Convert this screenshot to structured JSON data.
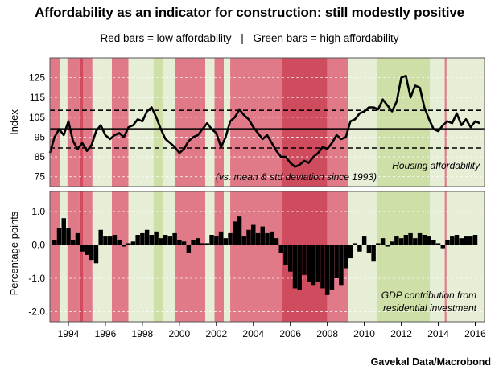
{
  "header": {
    "title": "Affordability as an indicator for construction: still modestly positive",
    "legend_red": "Red bars = low affordability",
    "legend_sep": "|",
    "legend_green": "Green bars =  high affordability"
  },
  "source": "Gavekal Data/Macrobond",
  "colors": {
    "red_band": "#e07a88",
    "dark_red_band": "#cf4b5e",
    "green_band": "#cfdfa8",
    "light_green_band": "#e7eed6",
    "line": "#000000",
    "bars": "#000000"
  },
  "chart_data": [
    {
      "type": "line",
      "ylabel": "Index",
      "ylim": [
        70,
        135
      ],
      "yticks": [
        75,
        85,
        95,
        105,
        115,
        125
      ],
      "x_range": [
        1993.0,
        2016.5
      ],
      "xticks": [
        1994,
        1996,
        1998,
        2000,
        2002,
        2004,
        2006,
        2008,
        2010,
        2012,
        2014,
        2016
      ],
      "grid": "dashed horizontal",
      "reference_lines": {
        "mean": 99,
        "upper": 108.5,
        "lower": 89.5
      },
      "annotations": [
        "Housing affordability",
        "(vs. mean & std deviation since 1993)"
      ],
      "series": [
        {
          "name": "Housing affordability",
          "x": [
            1993.0,
            1993.25,
            1993.5,
            1993.75,
            1994.0,
            1994.25,
            1994.5,
            1994.75,
            1995.0,
            1995.25,
            1995.5,
            1995.75,
            1996.0,
            1996.25,
            1996.5,
            1996.75,
            1997.0,
            1997.25,
            1997.5,
            1997.75,
            1998.0,
            1998.25,
            1998.5,
            1998.75,
            1999.0,
            1999.25,
            1999.5,
            1999.75,
            2000.0,
            2000.25,
            2000.5,
            2000.75,
            2001.0,
            2001.25,
            2001.5,
            2001.75,
            2002.0,
            2002.25,
            2002.5,
            2002.75,
            2003.0,
            2003.25,
            2003.5,
            2003.75,
            2004.0,
            2004.25,
            2004.5,
            2004.75,
            2005.0,
            2005.25,
            2005.5,
            2005.75,
            2006.0,
            2006.25,
            2006.5,
            2006.75,
            2007.0,
            2007.25,
            2007.5,
            2007.75,
            2008.0,
            2008.25,
            2008.5,
            2008.75,
            2009.0,
            2009.25,
            2009.5,
            2009.75,
            2010.0,
            2010.25,
            2010.5,
            2010.75,
            2011.0,
            2011.25,
            2011.5,
            2011.75,
            2012.0,
            2012.25,
            2012.5,
            2012.75,
            2013.0,
            2013.25,
            2013.5,
            2013.75,
            2014.0,
            2014.25,
            2014.5,
            2014.75,
            2015.0,
            2015.25,
            2015.5,
            2015.75,
            2016.0,
            2016.25
          ],
          "values": [
            87,
            95,
            99,
            96,
            103,
            93,
            89,
            92,
            88,
            91,
            98,
            101,
            96,
            94,
            96,
            97,
            95,
            100,
            101,
            104,
            103,
            108,
            110,
            105,
            99,
            94,
            92,
            90,
            87,
            89,
            93,
            95,
            96,
            99,
            102,
            99,
            97,
            90,
            95,
            103,
            105,
            109,
            106,
            104,
            100,
            97,
            94,
            96,
            92,
            88,
            85,
            85,
            82,
            80,
            81,
            83,
            82,
            85,
            87,
            90,
            89,
            92,
            96,
            94,
            95,
            103,
            104,
            107,
            108,
            110,
            110,
            109,
            114,
            111,
            108,
            113,
            125,
            126,
            115,
            121,
            120,
            110,
            104,
            99,
            98,
            101,
            103,
            102,
            107,
            101,
            104,
            100,
            103,
            102
          ]
        }
      ]
    },
    {
      "type": "bar",
      "ylabel": "Percentage points",
      "ylim": [
        -2.3,
        1.6
      ],
      "yticks": [
        -2.0,
        -1.0,
        0.0,
        1.0
      ],
      "ytick_labels": [
        "-2.0",
        "-1.0",
        "0.0",
        "1.0"
      ],
      "x_range": [
        1993.0,
        2016.5
      ],
      "grid": "dashed horizontal",
      "annotations": [
        "GDP contribution from",
        "residential investment"
      ],
      "series": [
        {
          "name": "GDP contribution from residential investment",
          "x": [
            1993.25,
            1993.5,
            1993.75,
            1994.0,
            1994.25,
            1994.5,
            1994.75,
            1995.0,
            1995.25,
            1995.5,
            1995.75,
            1996.0,
            1996.25,
            1996.5,
            1996.75,
            1997.0,
            1997.25,
            1997.5,
            1997.75,
            1998.0,
            1998.25,
            1998.5,
            1998.75,
            1999.0,
            1999.25,
            1999.5,
            1999.75,
            2000.0,
            2000.25,
            2000.5,
            2000.75,
            2001.0,
            2001.25,
            2001.5,
            2001.75,
            2002.0,
            2002.25,
            2002.5,
            2002.75,
            2003.0,
            2003.25,
            2003.5,
            2003.75,
            2004.0,
            2004.25,
            2004.5,
            2004.75,
            2005.0,
            2005.25,
            2005.5,
            2005.75,
            2006.0,
            2006.25,
            2006.5,
            2006.75,
            2007.0,
            2007.25,
            2007.5,
            2007.75,
            2008.0,
            2008.25,
            2008.5,
            2008.75,
            2009.0,
            2009.25,
            2009.5,
            2009.75,
            2010.0,
            2010.25,
            2010.5,
            2010.75,
            2011.0,
            2011.25,
            2011.5,
            2011.75,
            2012.0,
            2012.25,
            2012.5,
            2012.75,
            2013.0,
            2013.25,
            2013.5,
            2013.75,
            2014.0,
            2014.25,
            2014.5,
            2014.75,
            2015.0,
            2015.25,
            2015.5,
            2015.75,
            2016.0
          ],
          "values": [
            0.15,
            0.5,
            0.8,
            0.5,
            0.15,
            0.35,
            -0.2,
            -0.3,
            -0.45,
            -0.55,
            0.45,
            0.25,
            0.25,
            0.3,
            0.15,
            -0.05,
            0.05,
            0.1,
            0.3,
            0.35,
            0.45,
            0.3,
            0.4,
            0.2,
            0.3,
            0.25,
            0.35,
            0.15,
            0.1,
            -0.25,
            0.15,
            0.2,
            0.05,
            0.05,
            0.3,
            0.25,
            0.4,
            0.2,
            0.35,
            0.7,
            0.85,
            0.25,
            0.45,
            0.6,
            0.35,
            0.55,
            0.35,
            0.4,
            0.2,
            -0.25,
            -0.6,
            -0.8,
            -1.3,
            -1.35,
            -0.9,
            -1.1,
            -1.2,
            -1.1,
            -1.3,
            -1.5,
            -1.35,
            -1.0,
            -1.2,
            -0.7,
            -0.4,
            0.05,
            -0.2,
            0.25,
            -0.25,
            -0.5,
            0.05,
            0.2,
            -0.05,
            0.1,
            0.25,
            0.2,
            0.3,
            0.35,
            0.2,
            0.35,
            0.3,
            0.25,
            0.15,
            0.05,
            -0.1,
            0.15,
            0.25,
            0.3,
            0.2,
            0.25,
            0.25,
            0.3
          ]
        }
      ]
    }
  ],
  "shading_bands": [
    {
      "from": 1993.0,
      "to": 1993.55,
      "color": "red"
    },
    {
      "from": 1993.55,
      "to": 1993.95,
      "color": "light_green"
    },
    {
      "from": 1993.95,
      "to": 1994.6,
      "color": "red"
    },
    {
      "from": 1994.6,
      "to": 1994.8,
      "color": "dark_red"
    },
    {
      "from": 1994.8,
      "to": 1995.3,
      "color": "red"
    },
    {
      "from": 1995.3,
      "to": 1996.35,
      "color": "light_green"
    },
    {
      "from": 1996.35,
      "to": 1997.25,
      "color": "red"
    },
    {
      "from": 1997.25,
      "to": 1997.9,
      "color": "light_green"
    },
    {
      "from": 1997.9,
      "to": 1998.6,
      "color": "light_green"
    },
    {
      "from": 1998.6,
      "to": 1999.1,
      "color": "green"
    },
    {
      "from": 1999.1,
      "to": 1999.75,
      "color": "light_green"
    },
    {
      "from": 1999.75,
      "to": 2000.7,
      "color": "red"
    },
    {
      "from": 2000.7,
      "to": 2001.4,
      "color": "red"
    },
    {
      "from": 2001.4,
      "to": 2001.9,
      "color": "light_green"
    },
    {
      "from": 2001.9,
      "to": 2002.4,
      "color": "red"
    },
    {
      "from": 2002.4,
      "to": 2002.75,
      "color": "light_green"
    },
    {
      "from": 2002.75,
      "to": 2005.55,
      "color": "red"
    },
    {
      "from": 2005.55,
      "to": 2008.0,
      "color": "dark_red"
    },
    {
      "from": 2008.0,
      "to": 2009.15,
      "color": "red"
    },
    {
      "from": 2009.15,
      "to": 2010.7,
      "color": "light_green"
    },
    {
      "from": 2010.7,
      "to": 2013.55,
      "color": "green"
    },
    {
      "from": 2013.55,
      "to": 2014.35,
      "color": "light_green"
    },
    {
      "from": 2014.35,
      "to": 2014.45,
      "color": "red"
    },
    {
      "from": 2014.45,
      "to": 2016.5,
      "color": "light_green"
    }
  ]
}
